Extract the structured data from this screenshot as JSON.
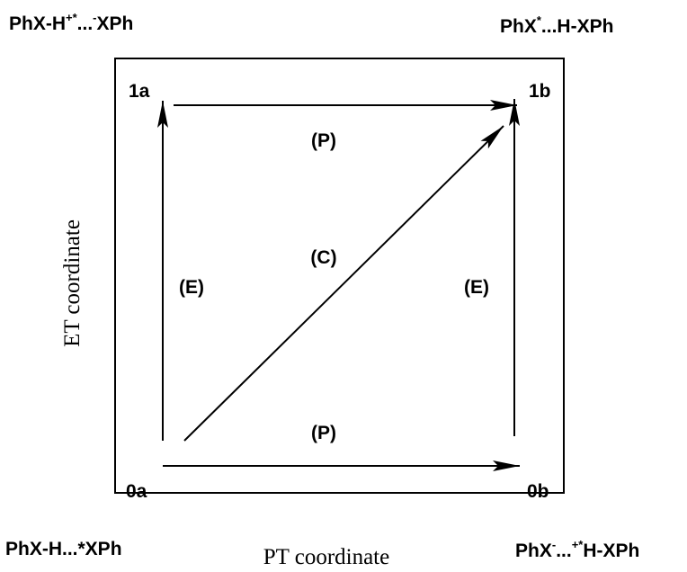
{
  "corner_labels": {
    "top_left": [
      {
        "text": "PhX-H"
      },
      {
        "sup": "+*"
      },
      {
        "text": "..."
      },
      {
        "sup": "-"
      },
      {
        "text": "XPh"
      }
    ],
    "top_right": [
      {
        "text": "PhX"
      },
      {
        "sup": "*"
      },
      {
        "text": "...H-XPh"
      }
    ],
    "bottom_left": [
      {
        "text": "PhX-H...*XPh"
      }
    ],
    "bottom_right": [
      {
        "text": "PhX"
      },
      {
        "sup": "-"
      },
      {
        "text": "..."
      },
      {
        "sup": "+*"
      },
      {
        "text": "H-XPh"
      }
    ]
  },
  "nodes": [
    "1a",
    "1b",
    "0a",
    "0b"
  ],
  "arrow_labels": {
    "top": "(P)",
    "diagonal": "(C)",
    "left": "(E)",
    "right": "(E)",
    "bottom": "(P)"
  },
  "axes": {
    "y": "ET coordinate",
    "x": "PT coordinate"
  }
}
